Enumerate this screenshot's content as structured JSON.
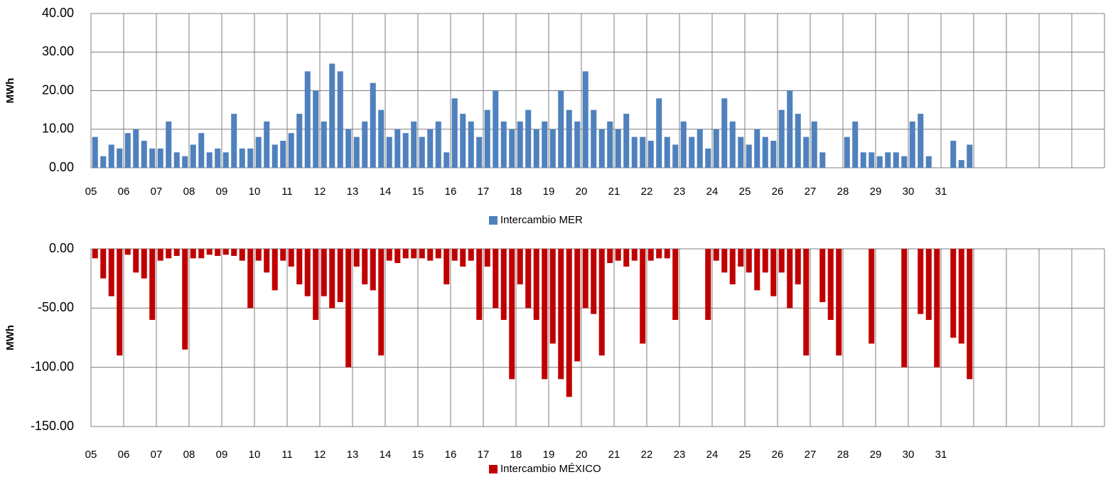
{
  "chart_data": [
    {
      "type": "bar",
      "ylabel": "MWh",
      "grid": true,
      "legend": "bottom",
      "categories": [
        "05",
        null,
        null,
        null,
        "06",
        null,
        null,
        null,
        "07",
        null,
        null,
        null,
        "08",
        null,
        null,
        null,
        "09",
        null,
        null,
        null,
        "10",
        null,
        null,
        null,
        "11",
        null,
        null,
        null,
        "12",
        null,
        null,
        null,
        "13",
        null,
        null,
        null,
        "14",
        null,
        null,
        null,
        "15",
        null,
        null,
        null,
        "16",
        null,
        null,
        null,
        "17",
        null,
        null,
        null,
        "18",
        null,
        null,
        null,
        "19",
        null,
        null,
        null,
        "20",
        null,
        null,
        null,
        "21",
        null,
        null,
        null,
        "22",
        null,
        null,
        null,
        "23",
        null,
        null,
        null,
        "24",
        null,
        null,
        null,
        "25",
        null,
        null,
        null,
        "26",
        null,
        null,
        null,
        "27",
        null,
        null,
        null,
        "28",
        null,
        null,
        null,
        "29",
        null,
        null,
        null,
        "30",
        null,
        null,
        null,
        "31",
        null,
        null,
        null,
        null,
        null,
        null,
        null,
        null,
        null,
        null,
        null,
        null,
        null,
        null,
        null,
        null,
        null,
        null,
        null
      ],
      "series": [
        {
          "name": "Intercambio MER",
          "color": "#4f81bd",
          "values": [
            8,
            3,
            6,
            5,
            9,
            10,
            7,
            5,
            5,
            12,
            4,
            3,
            6,
            9,
            4,
            5,
            4,
            14,
            5,
            5,
            8,
            12,
            6,
            7,
            9,
            14,
            25,
            20,
            12,
            27,
            25,
            10,
            8,
            12,
            22,
            15,
            8,
            10,
            9,
            12,
            8,
            10,
            12,
            4,
            18,
            14,
            12,
            8,
            15,
            20,
            12,
            10,
            12,
            15,
            10,
            12,
            10,
            20,
            15,
            12,
            25,
            15,
            10,
            12,
            10,
            14,
            8,
            8,
            7,
            18,
            8,
            6,
            12,
            8,
            10,
            5,
            10,
            18,
            12,
            8,
            6,
            10,
            8,
            7,
            15,
            20,
            14,
            8,
            12,
            4,
            null,
            null,
            8,
            12,
            4,
            4,
            3,
            4,
            4,
            3,
            12,
            14,
            3,
            null,
            null,
            7,
            2,
            6,
            null,
            null,
            null,
            null,
            null,
            null,
            null,
            null,
            null,
            null,
            null,
            null,
            null,
            null,
            null,
            null
          ]
        }
      ],
      "ylim": [
        0,
        40
      ],
      "yticks": [
        {
          "value": 0,
          "label": "0.00"
        },
        {
          "value": 10,
          "label": "10.00"
        },
        {
          "value": 20,
          "label": "20.00"
        },
        {
          "value": 30,
          "label": "30.00"
        },
        {
          "value": 40,
          "label": "40.00"
        }
      ]
    },
    {
      "type": "bar",
      "ylabel": "MWh",
      "grid": true,
      "legend": "bottom",
      "categories": [
        "05",
        null,
        null,
        null,
        "06",
        null,
        null,
        null,
        "07",
        null,
        null,
        null,
        "08",
        null,
        null,
        null,
        "09",
        null,
        null,
        null,
        "10",
        null,
        null,
        null,
        "11",
        null,
        null,
        null,
        "12",
        null,
        null,
        null,
        "13",
        null,
        null,
        null,
        "14",
        null,
        null,
        null,
        "15",
        null,
        null,
        null,
        "16",
        null,
        null,
        null,
        "17",
        null,
        null,
        null,
        "18",
        null,
        null,
        null,
        "19",
        null,
        null,
        null,
        "20",
        null,
        null,
        null,
        "21",
        null,
        null,
        null,
        "22",
        null,
        null,
        null,
        "23",
        null,
        null,
        null,
        "24",
        null,
        null,
        null,
        "25",
        null,
        null,
        null,
        "26",
        null,
        null,
        null,
        "27",
        null,
        null,
        null,
        "28",
        null,
        null,
        null,
        "29",
        null,
        null,
        null,
        "30",
        null,
        null,
        null,
        "31",
        null,
        null,
        null,
        null,
        null,
        null,
        null,
        null,
        null,
        null,
        null,
        null,
        null,
        null,
        null,
        null,
        null,
        null,
        null
      ],
      "series": [
        {
          "name": "Intercambio MÉXICO",
          "color": "#c00000",
          "values": [
            -8,
            -25,
            -40,
            -90,
            -5,
            -20,
            -25,
            -60,
            -10,
            -8,
            -6,
            -85,
            -8,
            -8,
            -5,
            -6,
            -5,
            -6,
            -10,
            -50,
            -10,
            -20,
            -35,
            -10,
            -15,
            -30,
            -40,
            -60,
            -40,
            -50,
            -45,
            -100,
            -15,
            -30,
            -35,
            -90,
            -10,
            -12,
            -8,
            -8,
            -8,
            -10,
            -8,
            -30,
            -10,
            -15,
            -10,
            -60,
            -15,
            -50,
            -60,
            -110,
            -30,
            -50,
            -60,
            -110,
            -80,
            -110,
            -125,
            -95,
            -50,
            -55,
            -90,
            -12,
            -10,
            -15,
            -10,
            -80,
            -10,
            -8,
            -8,
            -60,
            null,
            null,
            null,
            -60,
            -10,
            -20,
            -30,
            -15,
            -20,
            -35,
            -20,
            -40,
            -20,
            -50,
            -30,
            -90,
            null,
            -45,
            -60,
            -90,
            null,
            null,
            null,
            -80,
            null,
            null,
            null,
            -100,
            null,
            -55,
            -60,
            -100,
            null,
            -75,
            -80,
            -110,
            null,
            null,
            null,
            null,
            null,
            null,
            null,
            null,
            null,
            null,
            null,
            null,
            null,
            null,
            null,
            null
          ]
        }
      ],
      "ylim": [
        -150,
        0
      ],
      "yticks": [
        {
          "value": -150,
          "label": "-150.00"
        },
        {
          "value": -100,
          "label": "-100.00"
        },
        {
          "value": -50,
          "label": "-50.00"
        },
        {
          "value": 0,
          "label": "0.00"
        }
      ]
    }
  ]
}
